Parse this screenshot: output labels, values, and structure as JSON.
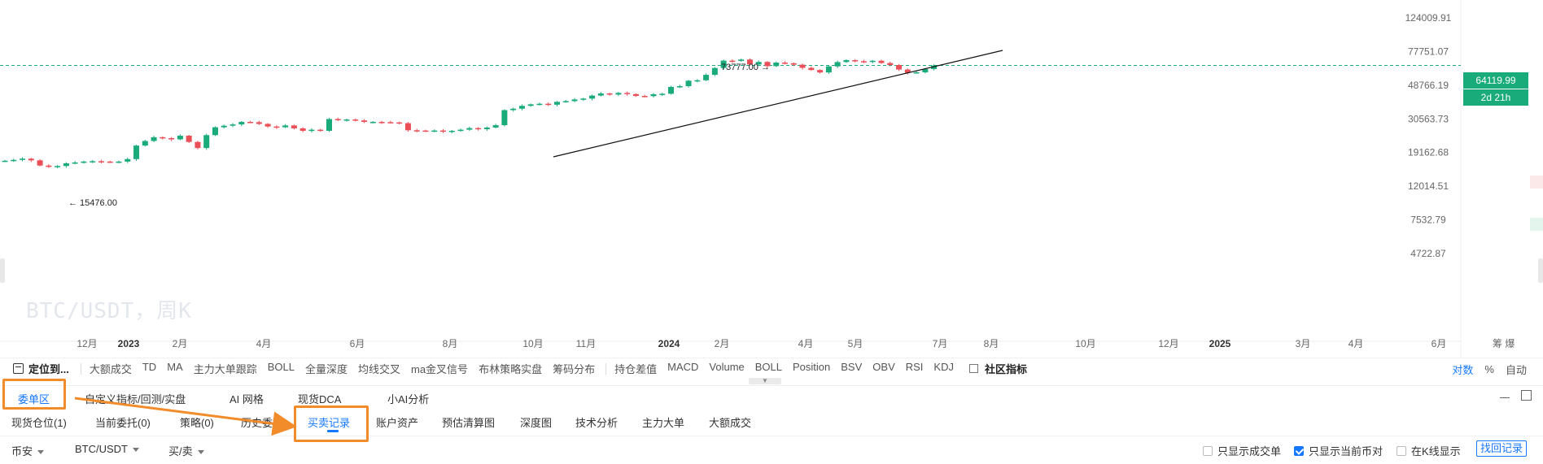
{
  "chart": {
    "watermark": "BTC/USDT，周K",
    "current_price": "64119.99",
    "countdown": "2d 21h",
    "high_label": "73777.00",
    "low_label": "15476.00",
    "y_ticks": [
      "124009.91",
      "77751.07",
      "48766.19",
      "30563.73",
      "19162.68",
      "12014.51",
      "7532.79",
      "4722.87"
    ],
    "x_ticks": [
      "12月",
      "2023",
      "2月",
      "4月",
      "6月",
      "8月",
      "10月",
      "11月",
      "2024",
      "2月",
      "4月",
      "5月",
      "7月",
      "8月",
      "10月",
      "12月",
      "2025",
      "3月",
      "4月",
      "6月"
    ],
    "x_tail": "筹 爆",
    "colors": {
      "up": "#1aab7a",
      "down": "#ea4f58",
      "trend": "#111111",
      "price_line": "#1aab7a"
    }
  },
  "chart_data": {
    "type": "candlestick",
    "title": "BTC/USDT，周K",
    "y_scale": "log",
    "y_ticks": [
      124009.91,
      77751.07,
      48766.19,
      30563.73,
      19162.68,
      12014.51,
      7532.79,
      4722.87
    ],
    "current_price": 64119.99,
    "annotations": [
      {
        "text": "73777.00 →",
        "value": 73777.0
      },
      {
        "text": "← 15476.00",
        "value": 15476.0
      }
    ],
    "series_close": [
      17100,
      17300,
      17600,
      17200,
      16000,
      15700,
      15900,
      16500,
      16700,
      16900,
      17000,
      16900,
      16800,
      16900,
      17500,
      21100,
      22500,
      23700,
      23400,
      23000,
      24200,
      22200,
      20400,
      24400,
      27200,
      27800,
      28300,
      29300,
      29200,
      28500,
      27500,
      27200,
      27900,
      26800,
      25900,
      26300,
      25900,
      30500,
      30200,
      30300,
      29900,
      29300,
      29300,
      29200,
      29100,
      28800,
      26100,
      26000,
      25800,
      26000,
      25600,
      25900,
      26300,
      26900,
      26500,
      27100,
      28000,
      34500,
      35200,
      36600,
      37400,
      37700,
      37200,
      38700,
      39100,
      40000,
      40500,
      42200,
      43500,
      42800,
      43800,
      43100,
      42000,
      41900,
      43000,
      43300,
      47600,
      48100,
      51900,
      52200,
      56300,
      61900,
      68500,
      68300,
      69600,
      65000,
      67300,
      63500,
      66700,
      66100,
      64800,
      62000,
      60200,
      58200,
      63300,
      67200,
      69000,
      68000,
      67600,
      68400,
      66300,
      64500,
      60600,
      57900,
      58300,
      61000,
      64100
    ]
  },
  "indicators": {
    "locate": "定位到...",
    "items": [
      "大额成交",
      "TD",
      "MA",
      "主力大单跟踪",
      "BOLL",
      "全量深度",
      "均线交叉",
      "ma金叉信号",
      "布林策略实盘",
      "筹码分布"
    ],
    "items2": [
      "持仓差值",
      "MACD",
      "Volume",
      "BOLL",
      "Position",
      "BSV",
      "OBV",
      "RSI",
      "KDJ"
    ],
    "community": "社区指标",
    "scale_options": [
      "对数",
      "%",
      "自动"
    ]
  },
  "module_tabs": [
    "委单区",
    "自定义指标/回测/实盘",
    "AI 网格",
    "现货DCA",
    "小AI分析"
  ],
  "sub_tabs": [
    "现货仓位(1)",
    "当前委托(0)",
    "策略(0)",
    "历史委托",
    "买卖记录",
    "账户资产",
    "预估清算图",
    "深度图",
    "技术分析",
    "主力大单",
    "大额成交"
  ],
  "filters": {
    "coin_type": "币安",
    "pair": "BTC/USDT",
    "side": "买/卖",
    "only_filled": "只显示成交单",
    "only_current_pair": "只显示当前币对",
    "show_on_kline": "在K线显示",
    "find_records": "找回记录"
  }
}
